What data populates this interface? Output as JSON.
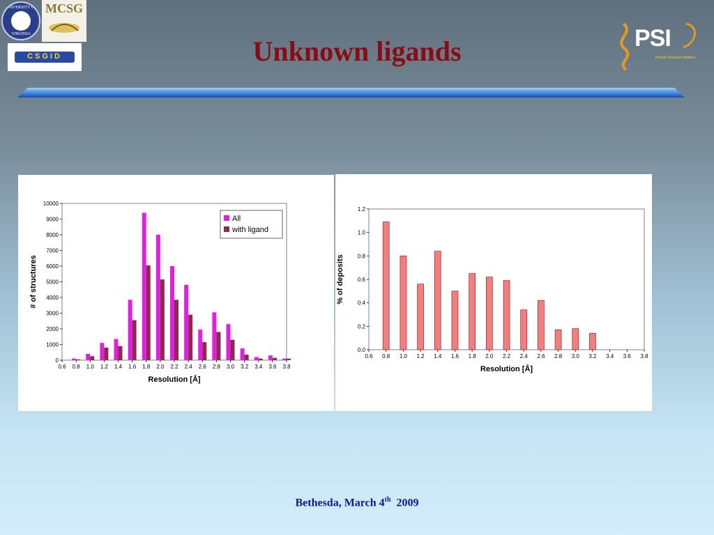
{
  "slide": {
    "title": "Unknown ligands",
    "footer_main": "Bethesda, March 4",
    "footer_sup": "th",
    "footer_year": "2009"
  },
  "logos": {
    "uva_top": "UNIVERSITY OF",
    "uva_bottom": "VIRGINIA",
    "mcsg": "MCSG",
    "csgid": "CSGID",
    "psi": "PSI",
    "psi_sub": "Protein Structure Initiative"
  },
  "colors": {
    "all": "#e020e0",
    "with_ligand": "#8e2950",
    "deposits": "#f08080",
    "title": "#8b0b12",
    "footer": "#0b1a8c"
  },
  "chart_data": [
    {
      "type": "bar",
      "title": "",
      "xlabel": "Resolution [Å]",
      "ylabel": "# of structures",
      "ylim": [
        0,
        10000
      ],
      "y_ticks": [
        0,
        1000,
        2000,
        3000,
        4000,
        5000,
        6000,
        7000,
        8000,
        9000,
        10000
      ],
      "x_ticks": [
        "0.6",
        "0.8",
        "1.0",
        "1.2",
        "1.4",
        "1.6",
        "1.8",
        "2.0",
        "2.2",
        "2.4",
        "2.6",
        "2.8",
        "3.0",
        "3.2",
        "3.4",
        "3.6",
        "3.8"
      ],
      "x_values": [
        0.8,
        1.0,
        1.2,
        1.4,
        1.6,
        1.8,
        2.0,
        2.2,
        2.4,
        2.6,
        2.8,
        3.0,
        3.2,
        3.4,
        3.6,
        3.8
      ],
      "legend_position": "top-right",
      "series": [
        {
          "name": "All",
          "values": [
            100,
            400,
            1100,
            1350,
            3850,
            9400,
            8000,
            6000,
            4800,
            1950,
            3050,
            2300,
            750,
            200,
            300,
            100
          ]
        },
        {
          "name": "with ligand",
          "values": [
            50,
            250,
            800,
            900,
            2550,
            6050,
            5150,
            3850,
            2900,
            1150,
            1800,
            1300,
            350,
            100,
            150,
            100
          ]
        }
      ]
    },
    {
      "type": "bar",
      "title": "",
      "xlabel": "Resolution [Å]",
      "ylabel": "% of deposits",
      "ylim": [
        0,
        1.2
      ],
      "y_ticks": [
        "0.0",
        "0.2",
        "0.4",
        "0.6",
        "0.8",
        "1.0",
        "1.2"
      ],
      "x_ticks": [
        "0.6",
        "0.8",
        "1.0",
        "1.2",
        "1.4",
        "1.6",
        "1.8",
        "2.0",
        "2.2",
        "2.4",
        "2.6",
        "2.8",
        "3.0",
        "3.2",
        "3.4",
        "3.6",
        "3.8"
      ],
      "x_values": [
        0.8,
        1.0,
        1.2,
        1.4,
        1.6,
        1.8,
        2.0,
        2.2,
        2.4,
        2.6,
        2.8,
        3.0,
        3.2
      ],
      "series": [
        {
          "values": [
            1.09,
            0.8,
            0.56,
            0.84,
            0.5,
            0.65,
            0.62,
            0.59,
            0.34,
            0.42,
            0.17,
            0.18,
            0.14
          ]
        }
      ]
    }
  ]
}
